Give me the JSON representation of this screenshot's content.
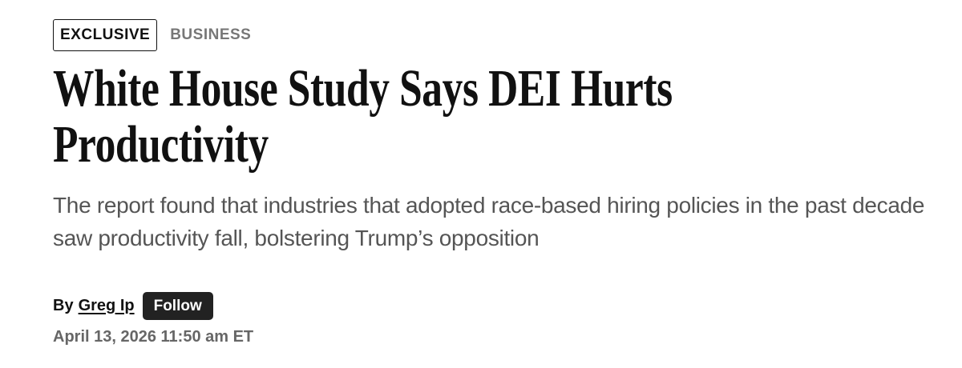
{
  "tags": {
    "flag": "EXCLUSIVE",
    "section": "BUSINESS"
  },
  "headline": "White House Study Says DEI Hurts Productivity",
  "dek": "The report found that industries that adopted race-based hiring policies in the past decade saw productivity fall, bolstering Trump’s opposition",
  "byline": {
    "prefix": "By",
    "author": "Greg Ip",
    "button": "Follow"
  },
  "timestamp": "April 13, 2026 11:50 am ET"
}
